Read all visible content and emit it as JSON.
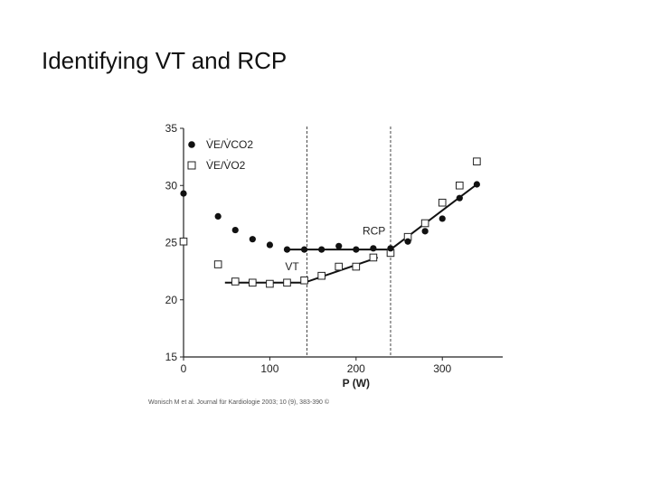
{
  "slide": {
    "title": "Identifying VT and RCP",
    "citation": "Wonisch M et al. Journal für Kardiologie 2003; 10 (9), 383-390 ©"
  },
  "chart_data": {
    "type": "scatter",
    "xlabel": "P (W)",
    "ylabel": "",
    "xlim": [
      0,
      370
    ],
    "ylim": [
      15,
      35
    ],
    "x_ticks": [
      "0",
      "100",
      "200",
      "300"
    ],
    "y_ticks": [
      "15",
      "20",
      "25",
      "30",
      "35"
    ],
    "grid": false,
    "legend_position": "top-left",
    "series": [
      {
        "name": "V̇E/V̇CO2",
        "marker": "filled-circle",
        "points": [
          [
            0,
            29.3
          ],
          [
            40,
            27.3
          ],
          [
            60,
            26.1
          ],
          [
            80,
            25.3
          ],
          [
            100,
            24.8
          ],
          [
            120,
            24.4
          ],
          [
            140,
            24.4
          ],
          [
            160,
            24.4
          ],
          [
            180,
            24.7
          ],
          [
            200,
            24.4
          ],
          [
            220,
            24.5
          ],
          [
            240,
            24.5
          ],
          [
            260,
            25.1
          ],
          [
            280,
            26.0
          ],
          [
            300,
            27.1
          ],
          [
            320,
            28.9
          ],
          [
            340,
            30.1
          ]
        ]
      },
      {
        "name": "V̇E/V̇O2",
        "marker": "open-square",
        "points": [
          [
            0,
            25.1
          ],
          [
            40,
            23.1
          ],
          [
            60,
            21.6
          ],
          [
            80,
            21.5
          ],
          [
            100,
            21.4
          ],
          [
            120,
            21.5
          ],
          [
            140,
            21.7
          ],
          [
            160,
            22.1
          ],
          [
            180,
            22.9
          ],
          [
            200,
            22.9
          ],
          [
            220,
            23.7
          ],
          [
            240,
            24.1
          ],
          [
            260,
            25.5
          ],
          [
            280,
            26.7
          ],
          [
            300,
            28.5
          ],
          [
            320,
            30.0
          ],
          [
            340,
            32.1
          ]
        ]
      }
    ],
    "fit_lines": [
      {
        "series": "V̇E/V̇CO2",
        "points": [
          [
            120,
            24.4
          ],
          [
            240,
            24.4
          ],
          [
            340,
            30.1
          ]
        ]
      },
      {
        "series": "V̇E/V̇O2",
        "points": [
          [
            48,
            21.5
          ],
          [
            140,
            21.5
          ],
          [
            225,
            23.7
          ]
        ]
      }
    ],
    "reference_lines": [
      {
        "label": "VT",
        "x": 143,
        "style": "dashed"
      },
      {
        "label": "RCP",
        "x": 240,
        "style": "dashed"
      }
    ]
  }
}
